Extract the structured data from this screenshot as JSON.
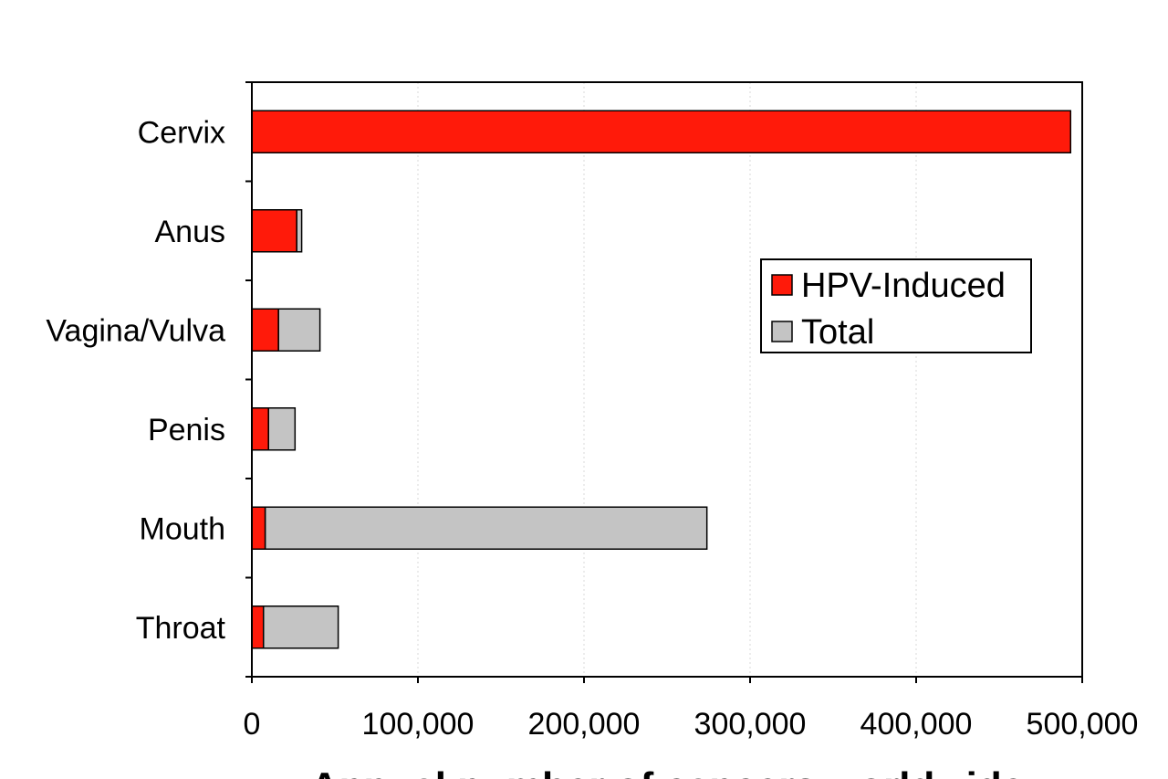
{
  "chart_data": {
    "type": "bar",
    "orientation": "horizontal",
    "stacked": true,
    "categories": [
      "Cervix",
      "Anus",
      "Vagina/Vulva",
      "Penis",
      "Mouth",
      "Throat"
    ],
    "series": [
      {
        "name": "HPV-Induced",
        "values": [
          493000,
          27000,
          16000,
          10000,
          8000,
          7000
        ],
        "color": "#ff1a0a"
      },
      {
        "name": "Total",
        "values": [
          493000,
          30000,
          41000,
          26000,
          274000,
          52000
        ],
        "color": "#c4c4c4"
      }
    ],
    "xlim": [
      0,
      500000
    ],
    "x_ticks": [
      "0",
      "100,000",
      "200,000",
      "300,000",
      "400,000",
      "500,000"
    ],
    "xlabel": "Annual number of cancers worldwide",
    "grid": true,
    "legend_position": "right"
  }
}
